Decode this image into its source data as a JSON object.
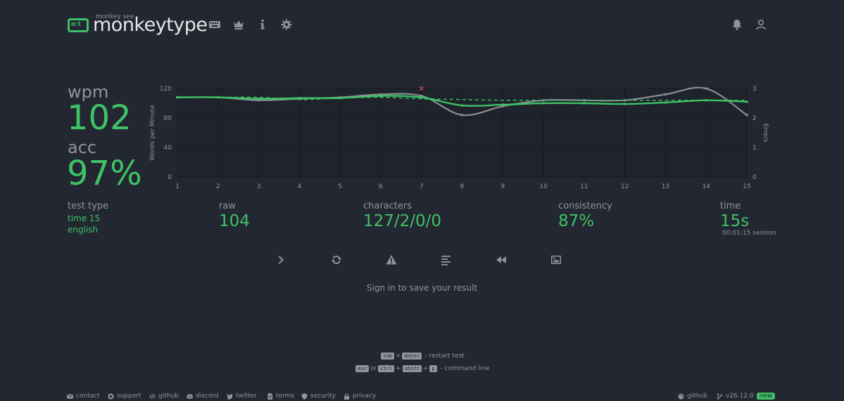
{
  "header": {
    "logo_mark": "m:t",
    "logo_sub": "monkey see",
    "logo_title": "monkeytype"
  },
  "stats": {
    "wpm_label": "wpm",
    "wpm_value": "102",
    "acc_label": "acc",
    "acc_value": "97%",
    "test_type_label": "test type",
    "test_type_mode": "time 15",
    "test_type_language": "english",
    "raw_label": "raw",
    "raw_value": "104",
    "characters_label": "characters",
    "characters_value": "127/2/0/0",
    "consistency_label": "consistency",
    "consistency_value": "87%",
    "time_label": "time",
    "time_value": "15s",
    "session": "00:01:15 session"
  },
  "signin": "Sign in to save your result",
  "hints": {
    "line1_key1": "tab",
    "line1_plus": "+",
    "line1_key2": "enter",
    "line1_text": "- restart test",
    "line2_key1": "esc",
    "line2_or": "or",
    "line2_key2": "ctrl",
    "line2_plus1": "+",
    "line2_key3": "shift",
    "line2_plus2": "+",
    "line2_key4": "p",
    "line2_text": "- command line"
  },
  "footer": {
    "left": [
      "contact",
      "support",
      "github",
      "discord",
      "twitter",
      "terms",
      "security",
      "privacy"
    ],
    "right_github": "github",
    "version": "v26.12.0",
    "new_badge": "new"
  },
  "colors": {
    "accent": "#3fc266",
    "text": "#8f959c",
    "bg": "#222731",
    "raw_line": "#8a8d91",
    "error": "#ca4754"
  },
  "chart_data": {
    "type": "line",
    "x": [
      1,
      2,
      3,
      4,
      5,
      6,
      7,
      8,
      9,
      10,
      11,
      12,
      13,
      14,
      15
    ],
    "ylabel": "Words per Minute",
    "y2label": "Errors",
    "ylim": [
      0,
      120
    ],
    "y2lim": [
      0,
      3
    ],
    "yticks": [
      "0",
      "40",
      "80",
      "120"
    ],
    "y2ticks": [
      "0",
      "1",
      "2",
      "3"
    ],
    "series": [
      {
        "values": [
          108,
          108,
          106,
          107,
          107,
          110,
          108,
          97,
          98,
          100,
          100,
          99,
          101,
          104,
          102
        ]
      },
      {
        "values": [
          108,
          108,
          104,
          106,
          108,
          112,
          110,
          84,
          96,
          104,
          104,
          104,
          112,
          120,
          84
        ]
      },
      {
        "values": [
          108,
          108,
          108,
          105,
          107,
          108,
          106,
          105,
          104,
          104,
          104,
          104,
          104,
          104,
          104
        ]
      }
    ],
    "errors_x": [
      7
    ],
    "grid": true
  }
}
